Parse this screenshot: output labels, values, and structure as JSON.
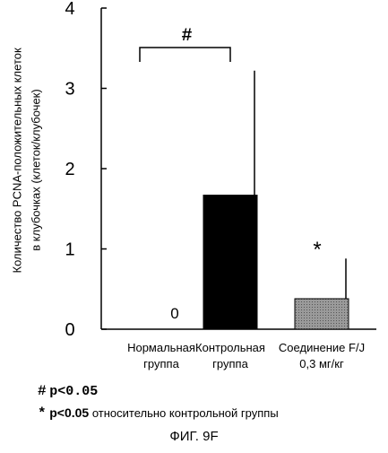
{
  "chart_data": {
    "type": "bar",
    "categories": [
      [
        "Нормальная",
        "группа"
      ],
      [
        "Контрольная",
        "группа"
      ],
      [
        "Соединение F/J",
        "0,3 мг/кг"
      ]
    ],
    "values": [
      0,
      1.67,
      0.38
    ],
    "error_upper": [
      0,
      3.22,
      0.88
    ],
    "bar_fills": [
      "#ffffff",
      "#000000",
      "#9a9a9a"
    ],
    "data_labels": [
      "0",
      "",
      ""
    ],
    "markers": [
      "",
      "",
      "*"
    ],
    "bracket": {
      "from": 0,
      "to": 1,
      "label": "#"
    },
    "ylabel": [
      "Количество PCNA-положительных клеток",
      "в клубочках (клеток/клубочек)"
    ],
    "ylim": [
      0,
      4
    ],
    "yticks": [
      "0",
      "1",
      "2",
      "3",
      "4"
    ],
    "grid": false
  },
  "notes": [
    {
      "symbol": "#",
      "text": "p<0.05",
      "suffix": ""
    },
    {
      "symbol": "*",
      "text": "p<0.05",
      "suffix": "относительно контрольной группы"
    }
  ],
  "caption": "ФИГ. 9F"
}
